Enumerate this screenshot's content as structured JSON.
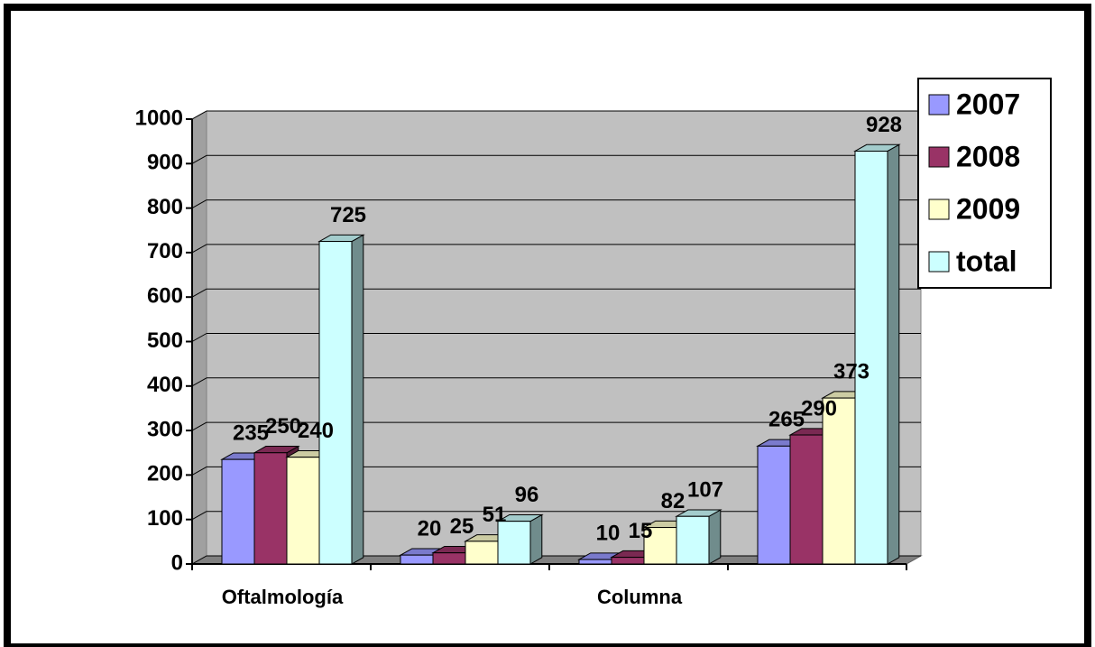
{
  "chart_data": {
    "type": "bar3d",
    "categories": [
      "Oftalmología",
      null,
      "Columna",
      null
    ],
    "series": [
      {
        "name": "2007",
        "color": "#9999ff",
        "values": [
          235,
          20,
          10,
          265
        ]
      },
      {
        "name": "2008",
        "color": "#993366",
        "values": [
          250,
          25,
          15,
          290
        ]
      },
      {
        "name": "2009",
        "color": "#ffffcc",
        "values": [
          240,
          51,
          82,
          373
        ]
      },
      {
        "name": "total",
        "color": "#ccffff",
        "values": [
          725,
          96,
          107,
          928
        ]
      }
    ],
    "ylim": [
      0,
      1000
    ],
    "yticks": [
      0,
      100,
      200,
      300,
      400,
      500,
      600,
      700,
      800,
      900,
      1000
    ],
    "grid": true,
    "legend": "right"
  }
}
